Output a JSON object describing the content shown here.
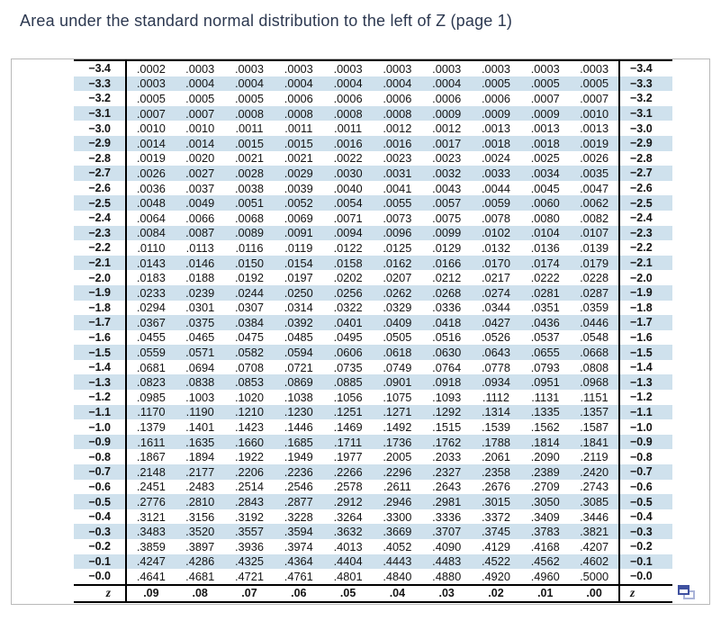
{
  "title": "Area under the standard normal distribution to the left of Z (page 1)",
  "colors": {
    "stripe": "#cfe1ed",
    "title_color": "#2c3850",
    "rule": "#000000",
    "icon_front": "#3f51a0",
    "icon_back": "#a9b3d8"
  },
  "icons": {
    "corner": "window-restore-icon"
  },
  "table": {
    "footer_label": "z",
    "column_headers": [
      ".09",
      ".08",
      ".07",
      ".06",
      ".05",
      ".04",
      ".03",
      ".02",
      ".01",
      ".00"
    ],
    "rows": [
      {
        "z": "−3.4",
        "values": [
          ".0002",
          ".0003",
          ".0003",
          ".0003",
          ".0003",
          ".0003",
          ".0003",
          ".0003",
          ".0003",
          ".0003"
        ]
      },
      {
        "z": "−3.3",
        "values": [
          ".0003",
          ".0004",
          ".0004",
          ".0004",
          ".0004",
          ".0004",
          ".0004",
          ".0005",
          ".0005",
          ".0005"
        ]
      },
      {
        "z": "−3.2",
        "values": [
          ".0005",
          ".0005",
          ".0005",
          ".0006",
          ".0006",
          ".0006",
          ".0006",
          ".0006",
          ".0007",
          ".0007"
        ]
      },
      {
        "z": "−3.1",
        "values": [
          ".0007",
          ".0007",
          ".0008",
          ".0008",
          ".0008",
          ".0008",
          ".0009",
          ".0009",
          ".0009",
          ".0010"
        ]
      },
      {
        "z": "−3.0",
        "values": [
          ".0010",
          ".0010",
          ".0011",
          ".0011",
          ".0011",
          ".0012",
          ".0012",
          ".0013",
          ".0013",
          ".0013"
        ]
      },
      {
        "z": "−2.9",
        "values": [
          ".0014",
          ".0014",
          ".0015",
          ".0015",
          ".0016",
          ".0016",
          ".0017",
          ".0018",
          ".0018",
          ".0019"
        ]
      },
      {
        "z": "−2.8",
        "values": [
          ".0019",
          ".0020",
          ".0021",
          ".0021",
          ".0022",
          ".0023",
          ".0023",
          ".0024",
          ".0025",
          ".0026"
        ]
      },
      {
        "z": "−2.7",
        "values": [
          ".0026",
          ".0027",
          ".0028",
          ".0029",
          ".0030",
          ".0031",
          ".0032",
          ".0033",
          ".0034",
          ".0035"
        ]
      },
      {
        "z": "−2.6",
        "values": [
          ".0036",
          ".0037",
          ".0038",
          ".0039",
          ".0040",
          ".0041",
          ".0043",
          ".0044",
          ".0045",
          ".0047"
        ]
      },
      {
        "z": "−2.5",
        "values": [
          ".0048",
          ".0049",
          ".0051",
          ".0052",
          ".0054",
          ".0055",
          ".0057",
          ".0059",
          ".0060",
          ".0062"
        ]
      },
      {
        "z": "−2.4",
        "values": [
          ".0064",
          ".0066",
          ".0068",
          ".0069",
          ".0071",
          ".0073",
          ".0075",
          ".0078",
          ".0080",
          ".0082"
        ]
      },
      {
        "z": "−2.3",
        "values": [
          ".0084",
          ".0087",
          ".0089",
          ".0091",
          ".0094",
          ".0096",
          ".0099",
          ".0102",
          ".0104",
          ".0107"
        ]
      },
      {
        "z": "−2.2",
        "values": [
          ".0110",
          ".0113",
          ".0116",
          ".0119",
          ".0122",
          ".0125",
          ".0129",
          ".0132",
          ".0136",
          ".0139"
        ]
      },
      {
        "z": "−2.1",
        "values": [
          ".0143",
          ".0146",
          ".0150",
          ".0154",
          ".0158",
          ".0162",
          ".0166",
          ".0170",
          ".0174",
          ".0179"
        ]
      },
      {
        "z": "−2.0",
        "values": [
          ".0183",
          ".0188",
          ".0192",
          ".0197",
          ".0202",
          ".0207",
          ".0212",
          ".0217",
          ".0222",
          ".0228"
        ]
      },
      {
        "z": "−1.9",
        "values": [
          ".0233",
          ".0239",
          ".0244",
          ".0250",
          ".0256",
          ".0262",
          ".0268",
          ".0274",
          ".0281",
          ".0287"
        ]
      },
      {
        "z": "−1.8",
        "values": [
          ".0294",
          ".0301",
          ".0307",
          ".0314",
          ".0322",
          ".0329",
          ".0336",
          ".0344",
          ".0351",
          ".0359"
        ]
      },
      {
        "z": "−1.7",
        "values": [
          ".0367",
          ".0375",
          ".0384",
          ".0392",
          ".0401",
          ".0409",
          ".0418",
          ".0427",
          ".0436",
          ".0446"
        ]
      },
      {
        "z": "−1.6",
        "values": [
          ".0455",
          ".0465",
          ".0475",
          ".0485",
          ".0495",
          ".0505",
          ".0516",
          ".0526",
          ".0537",
          ".0548"
        ]
      },
      {
        "z": "−1.5",
        "values": [
          ".0559",
          ".0571",
          ".0582",
          ".0594",
          ".0606",
          ".0618",
          ".0630",
          ".0643",
          ".0655",
          ".0668"
        ]
      },
      {
        "z": "−1.4",
        "values": [
          ".0681",
          ".0694",
          ".0708",
          ".0721",
          ".0735",
          ".0749",
          ".0764",
          ".0778",
          ".0793",
          ".0808"
        ]
      },
      {
        "z": "−1.3",
        "values": [
          ".0823",
          ".0838",
          ".0853",
          ".0869",
          ".0885",
          ".0901",
          ".0918",
          ".0934",
          ".0951",
          ".0968"
        ]
      },
      {
        "z": "−1.2",
        "values": [
          ".0985",
          ".1003",
          ".1020",
          ".1038",
          ".1056",
          ".1075",
          ".1093",
          ".1112",
          ".1131",
          ".1151"
        ]
      },
      {
        "z": "−1.1",
        "values": [
          ".1170",
          ".1190",
          ".1210",
          ".1230",
          ".1251",
          ".1271",
          ".1292",
          ".1314",
          ".1335",
          ".1357"
        ]
      },
      {
        "z": "−1.0",
        "values": [
          ".1379",
          ".1401",
          ".1423",
          ".1446",
          ".1469",
          ".1492",
          ".1515",
          ".1539",
          ".1562",
          ".1587"
        ]
      },
      {
        "z": "−0.9",
        "values": [
          ".1611",
          ".1635",
          ".1660",
          ".1685",
          ".1711",
          ".1736",
          ".1762",
          ".1788",
          ".1814",
          ".1841"
        ]
      },
      {
        "z": "−0.8",
        "values": [
          ".1867",
          ".1894",
          ".1922",
          ".1949",
          ".1977",
          ".2005",
          ".2033",
          ".2061",
          ".2090",
          ".2119"
        ]
      },
      {
        "z": "−0.7",
        "values": [
          ".2148",
          ".2177",
          ".2206",
          ".2236",
          ".2266",
          ".2296",
          ".2327",
          ".2358",
          ".2389",
          ".2420"
        ]
      },
      {
        "z": "−0.6",
        "values": [
          ".2451",
          ".2483",
          ".2514",
          ".2546",
          ".2578",
          ".2611",
          ".2643",
          ".2676",
          ".2709",
          ".2743"
        ]
      },
      {
        "z": "−0.5",
        "values": [
          ".2776",
          ".2810",
          ".2843",
          ".2877",
          ".2912",
          ".2946",
          ".2981",
          ".3015",
          ".3050",
          ".3085"
        ]
      },
      {
        "z": "−0.4",
        "values": [
          ".3121",
          ".3156",
          ".3192",
          ".3228",
          ".3264",
          ".3300",
          ".3336",
          ".3372",
          ".3409",
          ".3446"
        ]
      },
      {
        "z": "−0.3",
        "values": [
          ".3483",
          ".3520",
          ".3557",
          ".3594",
          ".3632",
          ".3669",
          ".3707",
          ".3745",
          ".3783",
          ".3821"
        ]
      },
      {
        "z": "−0.2",
        "values": [
          ".3859",
          ".3897",
          ".3936",
          ".3974",
          ".4013",
          ".4052",
          ".4090",
          ".4129",
          ".4168",
          ".4207"
        ]
      },
      {
        "z": "−0.1",
        "values": [
          ".4247",
          ".4286",
          ".4325",
          ".4364",
          ".4404",
          ".4443",
          ".4483",
          ".4522",
          ".4562",
          ".4602"
        ]
      },
      {
        "z": "−0.0",
        "values": [
          ".4641",
          ".4681",
          ".4721",
          ".4761",
          ".4801",
          ".4840",
          ".4880",
          ".4920",
          ".4960",
          ".5000"
        ]
      }
    ]
  }
}
